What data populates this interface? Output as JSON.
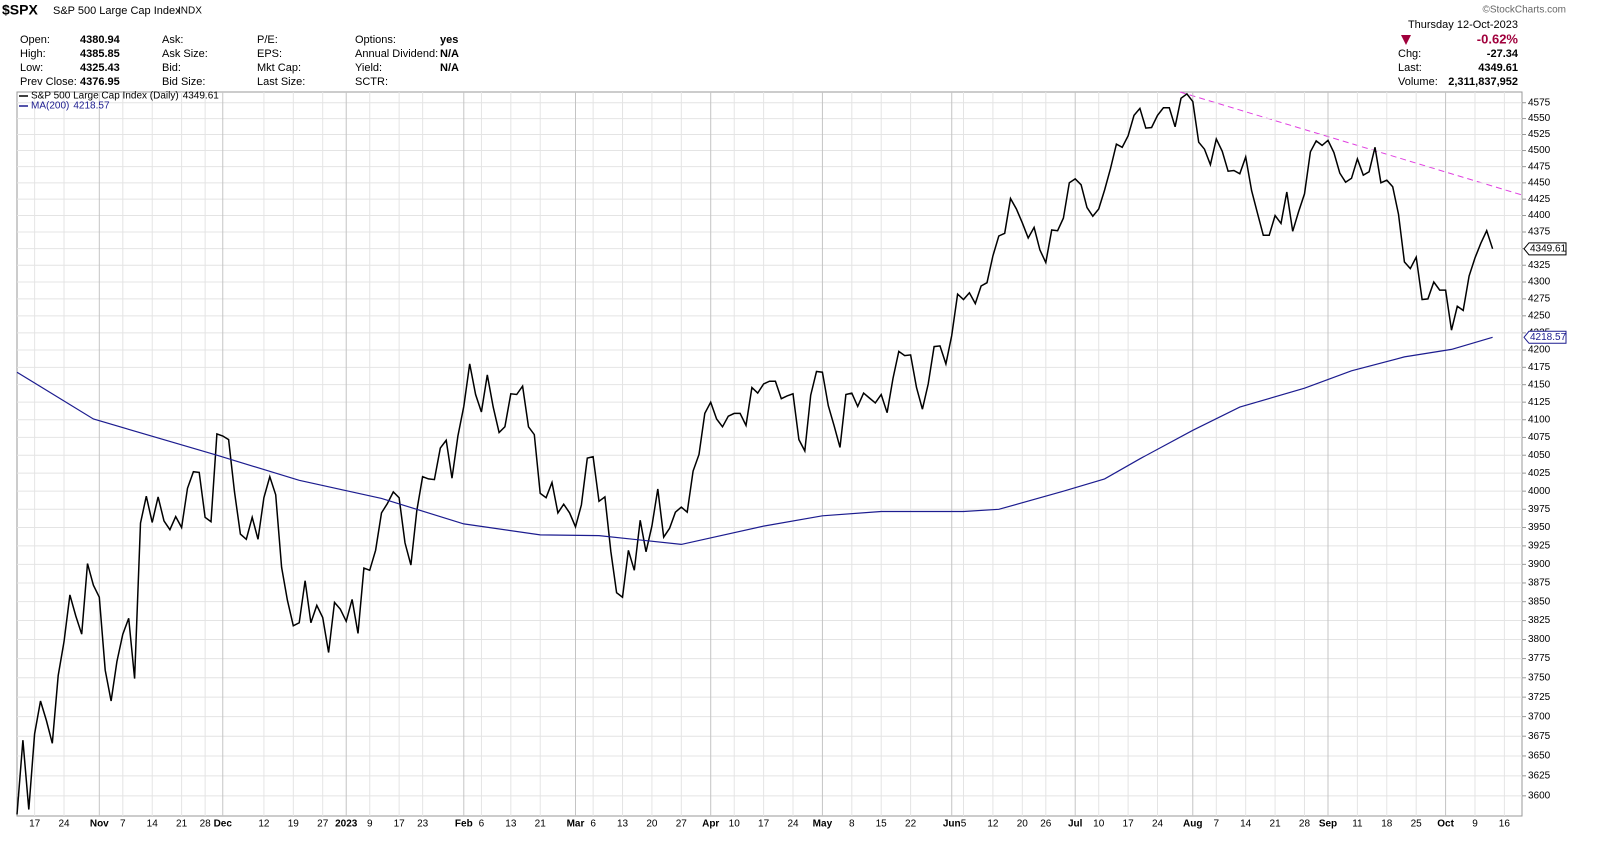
{
  "header": {
    "symbol": "$SPX",
    "name": "S&P 500 Large Cap Index",
    "exchange": "INDX",
    "copyright": "©StockCharts.com",
    "fields": [
      [
        {
          "label": "Open:",
          "value": "4380.94"
        },
        {
          "label": "High:",
          "value": "4385.85"
        },
        {
          "label": "Low:",
          "value": "4325.43"
        },
        {
          "label": "Prev Close:",
          "value": "4376.95"
        }
      ],
      [
        {
          "label": "Ask:"
        },
        {
          "label": "Ask Size:"
        },
        {
          "label": "Bid:"
        },
        {
          "label": "Bid Size:"
        }
      ],
      [
        {
          "label": "P/E:"
        },
        {
          "label": "EPS:"
        },
        {
          "label": "Mkt Cap:"
        },
        {
          "label": "Last Size:"
        }
      ],
      [
        {
          "label": "Options:",
          "value": "yes"
        },
        {
          "label": "Annual Dividend:",
          "value": "N/A"
        },
        {
          "label": "Yield:",
          "value": "N/A"
        },
        {
          "label": "SCTR:"
        }
      ]
    ],
    "date": "Thursday 12-Oct-2023",
    "change_pct": "-0.62%",
    "quote": [
      {
        "label": "Chg:",
        "value": "-27.34"
      },
      {
        "label": "Last:",
        "value": "4349.61"
      },
      {
        "label": "Volume:",
        "value": "2,311,837,952"
      }
    ]
  },
  "chart_data": {
    "type": "line",
    "log_scale": true,
    "grid": true,
    "xlim": [
      0,
      256
    ],
    "ylim": [
      3575,
      4592
    ],
    "yticks": [
      3600,
      3625,
      3650,
      3675,
      3700,
      3725,
      3750,
      3775,
      3800,
      3825,
      3850,
      3875,
      3900,
      3925,
      3950,
      3975,
      4000,
      4025,
      4050,
      4075,
      4100,
      4125,
      4150,
      4175,
      4200,
      4225,
      4250,
      4275,
      4300,
      4325,
      4350,
      4375,
      4400,
      4425,
      4450,
      4475,
      4500,
      4525,
      4550,
      4575
    ],
    "xticks": [
      {
        "value": 3,
        "label": "17"
      },
      {
        "value": 8,
        "label": "24"
      },
      {
        "value": 14,
        "label": "Nov"
      },
      {
        "value": 18,
        "label": "7"
      },
      {
        "value": 23,
        "label": "14"
      },
      {
        "value": 28,
        "label": "21"
      },
      {
        "value": 32,
        "label": "28"
      },
      {
        "value": 35,
        "label": "Dec"
      },
      {
        "value": 42,
        "label": "12"
      },
      {
        "value": 47,
        "label": "19"
      },
      {
        "value": 52,
        "label": "27"
      },
      {
        "value": 56,
        "label": "2023"
      },
      {
        "value": 60,
        "label": "9"
      },
      {
        "value": 65,
        "label": "17"
      },
      {
        "value": 69,
        "label": "23"
      },
      {
        "value": 76,
        "label": "Feb"
      },
      {
        "value": 79,
        "label": "6"
      },
      {
        "value": 84,
        "label": "13"
      },
      {
        "value": 89,
        "label": "21"
      },
      {
        "value": 95,
        "label": "Mar"
      },
      {
        "value": 98,
        "label": "6"
      },
      {
        "value": 103,
        "label": "13"
      },
      {
        "value": 108,
        "label": "20"
      },
      {
        "value": 113,
        "label": "27"
      },
      {
        "value": 118,
        "label": "Apr"
      },
      {
        "value": 122,
        "label": "10"
      },
      {
        "value": 127,
        "label": "17"
      },
      {
        "value": 132,
        "label": "24"
      },
      {
        "value": 137,
        "label": "May"
      },
      {
        "value": 142,
        "label": "8"
      },
      {
        "value": 147,
        "label": "15"
      },
      {
        "value": 152,
        "label": "22"
      },
      {
        "value": 159,
        "label": "Jun"
      },
      {
        "value": 161,
        "label": "5"
      },
      {
        "value": 166,
        "label": "12"
      },
      {
        "value": 171,
        "label": "20"
      },
      {
        "value": 175,
        "label": "26"
      },
      {
        "value": 180,
        "label": "Jul"
      },
      {
        "value": 184,
        "label": "10"
      },
      {
        "value": 189,
        "label": "17"
      },
      {
        "value": 194,
        "label": "24"
      },
      {
        "value": 200,
        "label": "Aug"
      },
      {
        "value": 204,
        "label": "7"
      },
      {
        "value": 209,
        "label": "14"
      },
      {
        "value": 214,
        "label": "21"
      },
      {
        "value": 219,
        "label": "28"
      },
      {
        "value": 223,
        "label": "Sep"
      },
      {
        "value": 228,
        "label": "11"
      },
      {
        "value": 233,
        "label": "18"
      },
      {
        "value": 238,
        "label": "25"
      },
      {
        "value": 243,
        "label": "Oct"
      },
      {
        "value": 248,
        "label": "9"
      },
      {
        "value": 253,
        "label": "16"
      }
    ],
    "series": [
      {
        "name": "S&P 500 Large Cap Index (Daily)",
        "color": "#000000",
        "values": [
          3577,
          3670,
          3583,
          3678,
          3720,
          3695,
          3666,
          3753,
          3797,
          3859,
          3831,
          3807,
          3901,
          3872,
          3856,
          3760,
          3720,
          3771,
          3807,
          3828,
          3749,
          3956,
          3993,
          3957,
          3992,
          3959,
          3947,
          3965,
          3950,
          4004,
          4027,
          4026,
          3964,
          3958,
          4080,
          4077,
          4072,
          3999,
          3941,
          3934,
          3964,
          3934,
          3991,
          4020,
          3995,
          3896,
          3852,
          3818,
          3822,
          3878,
          3822,
          3845,
          3829,
          3783,
          3849,
          3840,
          3824,
          3853,
          3808,
          3895,
          3892,
          3919,
          3970,
          3983,
          3999,
          3991,
          3929,
          3899,
          3973,
          4020,
          4017,
          4016,
          4060,
          4071,
          4018,
          4077,
          4119,
          4180,
          4136,
          4111,
          4164,
          4118,
          4082,
          4090,
          4137,
          4136,
          4148,
          4090,
          4079,
          3997,
          3991,
          4012,
          3970,
          3982,
          3970,
          3951,
          3981,
          4046,
          4048,
          3986,
          3992,
          3918,
          3862,
          3856,
          3919,
          3892,
          3960,
          3917,
          3952,
          4003,
          3937,
          3949,
          3971,
          3978,
          3971,
          4028,
          4051,
          4109,
          4125,
          4101,
          4090,
          4105,
          4109,
          4109,
          4092,
          4146,
          4138,
          4151,
          4155,
          4155,
          4130,
          4134,
          4137,
          4072,
          4056,
          4135,
          4169,
          4168,
          4120,
          4091,
          4061,
          4136,
          4138,
          4119,
          4138,
          4131,
          4124,
          4136,
          4110,
          4159,
          4198,
          4192,
          4193,
          4146,
          4115,
          4151,
          4205,
          4206,
          4180,
          4221,
          4282,
          4274,
          4284,
          4268,
          4294,
          4299,
          4339,
          4369,
          4373,
          4426,
          4410,
          4389,
          4366,
          4382,
          4348,
          4329,
          4378,
          4377,
          4396,
          4450,
          4456,
          4447,
          4412,
          4399,
          4410,
          4439,
          4472,
          4510,
          4505,
          4523,
          4555,
          4566,
          4535,
          4536,
          4555,
          4567,
          4567,
          4537,
          4582,
          4589,
          4577,
          4513,
          4502,
          4478,
          4518,
          4499,
          4468,
          4469,
          4464,
          4490,
          4438,
          4404,
          4370,
          4370,
          4400,
          4388,
          4436,
          4376,
          4406,
          4433,
          4498,
          4515,
          4508,
          4516,
          4497,
          4465,
          4451,
          4457,
          4487,
          4462,
          4467,
          4505,
          4450,
          4454,
          4444,
          4402,
          4330,
          4320,
          4337,
          4274,
          4275,
          4300,
          4288,
          4288,
          4229,
          4264,
          4258,
          4309,
          4336,
          4358,
          4377,
          4349.61
        ]
      },
      {
        "name": "MA(200)",
        "color": "#1c1c8f",
        "x": [
          0,
          13,
          34,
          48,
          62,
          76,
          89,
          99,
          113,
          127,
          137,
          147,
          161,
          167,
          178,
          185,
          191,
          200,
          208,
          219,
          227,
          236,
          244,
          251
        ],
        "values": [
          4168,
          4101,
          4050,
          4015,
          3990,
          3955,
          3940,
          3939,
          3927,
          3952,
          3966,
          3972,
          3972,
          3975,
          4000,
          4017,
          4045,
          4085,
          4118,
          4145,
          4170,
          4190,
          4201,
          4218.57
        ]
      }
    ]
  }
}
